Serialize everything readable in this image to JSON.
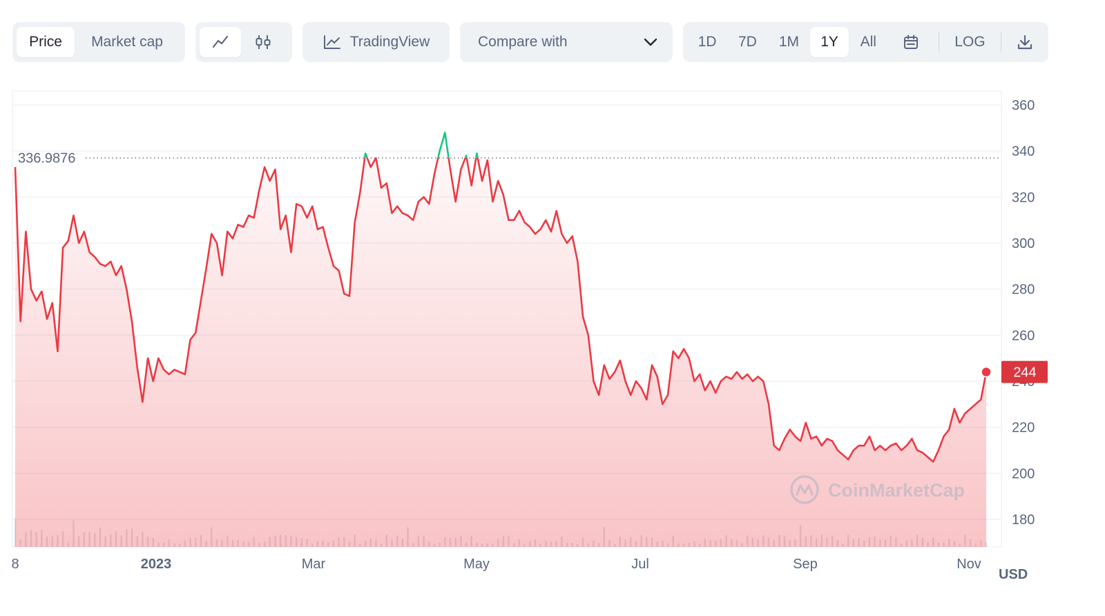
{
  "toolbar": {
    "view_tabs": [
      "Price",
      "Market cap"
    ],
    "tradingview_label": "TradingView",
    "compare_label": "Compare with",
    "ranges": [
      "1D",
      "7D",
      "1M",
      "1Y",
      "All"
    ],
    "active_range": "1Y",
    "log_label": "LOG"
  },
  "watermark": "CoinMarketCap",
  "chart_data": {
    "type": "area",
    "x_tick_labels": [
      "8",
      "2023",
      "Mar",
      "May",
      "Jul",
      "Sep",
      "Nov"
    ],
    "y_ticks": [
      180,
      200,
      220,
      240,
      260,
      280,
      300,
      320,
      340,
      360
    ],
    "ylim": [
      168,
      366
    ],
    "currency_label": "USD",
    "reference_price": "336.9876",
    "reference_value": 336.9876,
    "current_price_label": "244",
    "current_value": 244,
    "colors": {
      "down": "#ea3943",
      "up": "#16c784",
      "current_badge": "#d9363e",
      "grid": "#eff2f5",
      "axis_text": "#58667e"
    },
    "series": [
      {
        "values": [
          333,
          266,
          305,
          280,
          275,
          279,
          267,
          274,
          253,
          298,
          301,
          312,
          300,
          305,
          296,
          294,
          291,
          290,
          292,
          286,
          290,
          280,
          266,
          246,
          231,
          250,
          240,
          250,
          245,
          243,
          245,
          244,
          243,
          258,
          261,
          275,
          289,
          304,
          300,
          286,
          305,
          302,
          308,
          307,
          312,
          311,
          323,
          333,
          327,
          332,
          306,
          312,
          296,
          317,
          316,
          311,
          316,
          306,
          307,
          298,
          290,
          288,
          278,
          277,
          309,
          322,
          339,
          333,
          337,
          324,
          326,
          313,
          316,
          313,
          312,
          310,
          318,
          320,
          317,
          330,
          340,
          348,
          332,
          318,
          332,
          338,
          325,
          339,
          327,
          336,
          318,
          327,
          321,
          310,
          310,
          314,
          309,
          307,
          304,
          306,
          310,
          305,
          314,
          304,
          300,
          303,
          292,
          268,
          260,
          240,
          234,
          247,
          241,
          244,
          249,
          240,
          234,
          240,
          237,
          232,
          247,
          242,
          230,
          234,
          253,
          250,
          254,
          250,
          240,
          243,
          236,
          240,
          235,
          240,
          242,
          241,
          244,
          241,
          243,
          240,
          242,
          240,
          230,
          212,
          210,
          215,
          219,
          216,
          214,
          222,
          215,
          216,
          212,
          215,
          214,
          210,
          208,
          206,
          210,
          212,
          212,
          216,
          210,
          212,
          210,
          212,
          213,
          210,
          212,
          215,
          210,
          209,
          207,
          205,
          210,
          216,
          219,
          228,
          222,
          226,
          228,
          230,
          232,
          244
        ]
      }
    ]
  }
}
